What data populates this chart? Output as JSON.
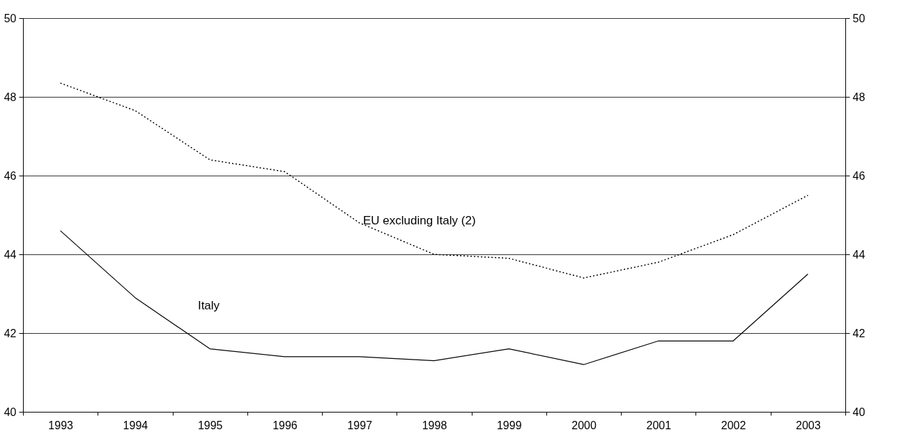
{
  "chart_data": {
    "type": "line",
    "categories": [
      "1993",
      "1994",
      "1995",
      "1996",
      "1997",
      "1998",
      "1999",
      "2000",
      "2001",
      "2002",
      "2003"
    ],
    "series": [
      {
        "name": "Italy",
        "color": "#000000",
        "line_style": "solid",
        "values": [
          44.6,
          42.9,
          41.6,
          41.4,
          41.4,
          41.3,
          41.6,
          41.2,
          41.8,
          41.8,
          43.5
        ]
      },
      {
        "name": "EU excluding Italy (2)",
        "color": "#000000",
        "line_style": "dotted",
        "values": [
          48.35,
          47.65,
          46.4,
          46.1,
          44.8,
          44.0,
          43.9,
          43.4,
          43.8,
          44.5,
          45.5
        ]
      }
    ],
    "ylim": [
      40,
      50
    ],
    "yticks": [
      40,
      42,
      44,
      46,
      48,
      50
    ],
    "y2lim": [
      40,
      50
    ],
    "y2ticks": [
      40,
      42,
      44,
      46,
      48,
      50
    ],
    "grid": "y",
    "legend": false,
    "marker": "none"
  }
}
